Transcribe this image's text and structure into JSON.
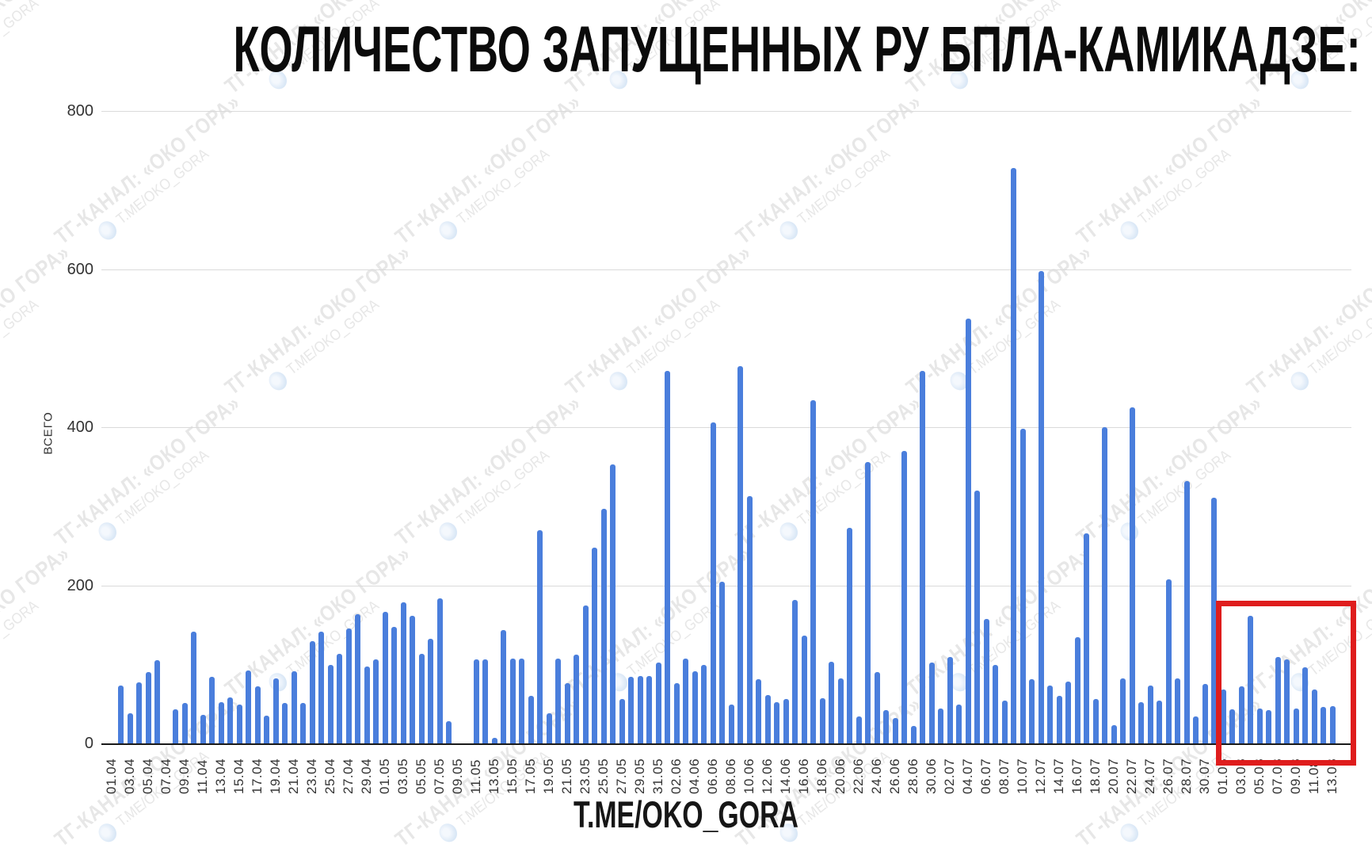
{
  "page": {
    "title": "КОЛИЧЕСТВО ЗАПУЩЕННЫХ РУ БПЛА-КАМИКАДЗЕ:",
    "footer": "T.ME/OKO_GORA"
  },
  "watermark": {
    "line1": "ТГ-КАНАЛ: «ОКО ГОРА»",
    "line2": "T.ME/OKO_GORA"
  },
  "colors": {
    "bar": "#4a7edc",
    "highlight_box": "#df1d1d",
    "gridline": "#dadada",
    "axis": "#1a1a1a",
    "tick_text": "#333333",
    "title_text": "#0b0b0b",
    "watermark_text": "#e7e7e7"
  },
  "chart_data": {
    "type": "bar",
    "title": "КОЛИЧЕСТВО ЗАПУЩЕННЫХ РУ БПЛА-КАМИКАДЗЕ:",
    "xlabel": "",
    "ylabel": "ВСЕГО",
    "ylim": [
      0,
      800
    ],
    "yticks": [
      0,
      200,
      400,
      600,
      800
    ],
    "grid": true,
    "legend": false,
    "x_tick_every": 2,
    "categories": [
      "01.04",
      "02.04",
      "03.04",
      "04.04",
      "05.04",
      "06.04",
      "07.04",
      "08.04",
      "09.04",
      "10.04",
      "11.04",
      "12.04",
      "13.04",
      "14.04",
      "15.04",
      "16.04",
      "17.04",
      "18.04",
      "19.04",
      "20.04",
      "21.04",
      "22.04",
      "23.04",
      "24.04",
      "25.04",
      "26.04",
      "27.04",
      "28.04",
      "29.04",
      "30.04",
      "01.05",
      "02.05",
      "03.05",
      "04.05",
      "05.05",
      "06.05",
      "07.05",
      "08.05",
      "09.05",
      "10.05",
      "11.05",
      "12.05",
      "13.05",
      "14.05",
      "15.05",
      "16.05",
      "17.05",
      "18.05",
      "19.05",
      "20.05",
      "21.05",
      "22.05",
      "23.05",
      "24.05",
      "25.05",
      "26.05",
      "27.05",
      "28.05",
      "29.05",
      "30.05",
      "31.05",
      "01.06",
      "02.06",
      "03.06",
      "04.06",
      "05.06",
      "06.06",
      "07.06",
      "08.06",
      "09.06",
      "10.06",
      "11.06",
      "12.06",
      "13.06",
      "14.06",
      "15.06",
      "16.06",
      "17.06",
      "18.06",
      "19.06",
      "20.06",
      "21.06",
      "22.06",
      "23.06",
      "24.06",
      "25.06",
      "26.06",
      "27.06",
      "28.06",
      "29.06",
      "30.06",
      "01.07",
      "02.07",
      "03.07",
      "04.07",
      "05.07",
      "06.07",
      "07.07",
      "08.07",
      "09.07",
      "10.07",
      "11.07",
      "12.07",
      "13.07",
      "14.07",
      "15.07",
      "16.07",
      "17.07",
      "18.07",
      "19.07",
      "20.07",
      "21.07",
      "22.07",
      "23.07",
      "24.07",
      "25.07",
      "26.07",
      "27.07",
      "28.07",
      "29.07",
      "30.07",
      "31.07",
      "01.08",
      "02.08",
      "03.08",
      "04.08",
      "05.08",
      "06.08",
      "07.08",
      "08.08",
      "09.08",
      "10.08",
      "11.08",
      "12.08",
      "13.08"
    ],
    "values": [
      0,
      73,
      38,
      77,
      90,
      105,
      0,
      43,
      51,
      141,
      36,
      84,
      52,
      58,
      49,
      92,
      72,
      35,
      82,
      51,
      91,
      51,
      129,
      141,
      99,
      113,
      145,
      163,
      97,
      106,
      166,
      147,
      178,
      161,
      113,
      132,
      183,
      28,
      0,
      0,
      106,
      106,
      7,
      143,
      107,
      107,
      60,
      270,
      38,
      107,
      76,
      112,
      174,
      248,
      297,
      353,
      56,
      84,
      85,
      85,
      102,
      471,
      76,
      107,
      91,
      99,
      406,
      205,
      49,
      477,
      313,
      81,
      61,
      52,
      56,
      181,
      136,
      434,
      57,
      103,
      82,
      273,
      34,
      356,
      90,
      42,
      32,
      370,
      22,
      471,
      102,
      44,
      109,
      49,
      537,
      320,
      157,
      99,
      54,
      728,
      398,
      81,
      597,
      73,
      60,
      78,
      134,
      266,
      56,
      400,
      23,
      82,
      425,
      52,
      73,
      54,
      208,
      82,
      332,
      34,
      75,
      311,
      68,
      43,
      72,
      161,
      44,
      42,
      109,
      106,
      44,
      96,
      68,
      46,
      47
    ],
    "highlight_region": {
      "start": "01.08",
      "end": "13.08",
      "color": "#df1d1d"
    }
  }
}
